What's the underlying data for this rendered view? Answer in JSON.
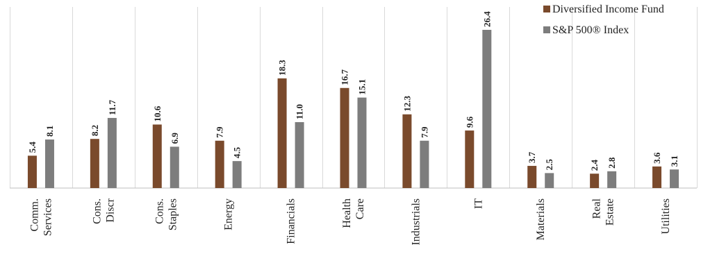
{
  "chart_data": {
    "type": "bar",
    "title": "",
    "xlabel": "",
    "ylabel": "",
    "ylim": [
      0,
      28
    ],
    "grid": false,
    "legend_position": "top-right",
    "categories": [
      "Comm. Services",
      "Cons. Discr",
      "Cons. Staples",
      "Energy",
      "Financials",
      "Health Care",
      "Industrials",
      "IT",
      "Materials",
      "Real Estate",
      "Utilities"
    ],
    "category_lines": [
      [
        "Comm.",
        "Services"
      ],
      [
        "Cons.",
        "Discr"
      ],
      [
        "Cons.",
        "Staples"
      ],
      [
        "Energy"
      ],
      [
        "Financials"
      ],
      [
        "Health",
        "Care"
      ],
      [
        "Industrials"
      ],
      [
        "IT"
      ],
      [
        "Materials"
      ],
      [
        "Real",
        "Estate"
      ],
      [
        "Utilities"
      ]
    ],
    "series": [
      {
        "name": "Diversified Income Fund",
        "color": "#7a4a2c",
        "values": [
          5.4,
          8.2,
          10.6,
          7.9,
          18.3,
          16.7,
          12.3,
          9.6,
          3.7,
          2.4,
          3.6
        ],
        "labels": [
          "5.4",
          "8.2",
          "10.6",
          "7.9",
          "18.3",
          "16.7",
          "12.3",
          "9.6",
          "3.7",
          "2.4",
          "3.6"
        ]
      },
      {
        "name": "S&P 500® Index",
        "color": "#7d7d7d",
        "values": [
          8.1,
          11.7,
          6.9,
          4.5,
          11.0,
          15.1,
          7.9,
          26.4,
          2.5,
          2.8,
          3.1
        ],
        "labels": [
          "8.1",
          "11.7",
          "6.9",
          "4.5",
          "11.0",
          "15.1",
          "7.9",
          "26.4",
          "2.5",
          "2.8",
          "3.1"
        ]
      }
    ]
  }
}
